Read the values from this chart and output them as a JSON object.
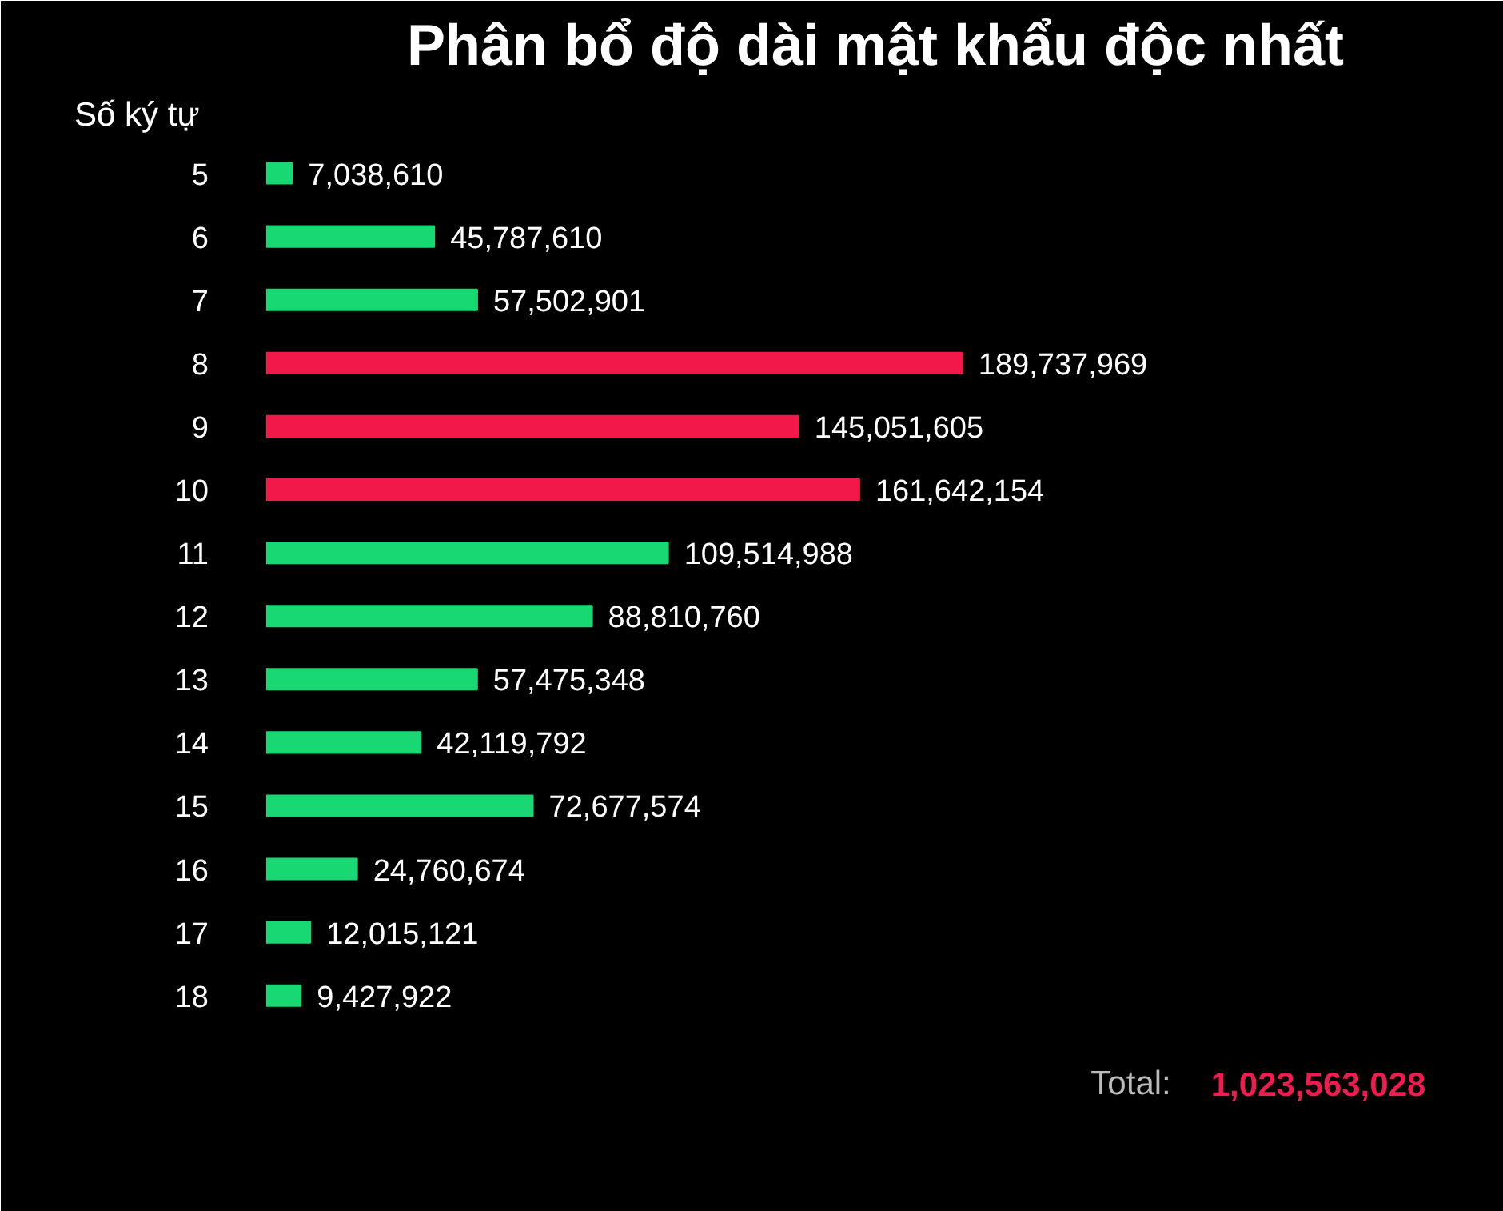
{
  "chart_data": {
    "type": "bar",
    "orientation": "horizontal",
    "title": "Phân bổ độ dài mật khẩu độc nhất",
    "ylabel": "Số ký tự",
    "categories": [
      "5",
      "6",
      "7",
      "8",
      "9",
      "10",
      "11",
      "12",
      "13",
      "14",
      "15",
      "16",
      "17",
      "18"
    ],
    "values": [
      7038610,
      45787610,
      57502901,
      189737969,
      145051605,
      161642154,
      109514988,
      88810760,
      57475348,
      42119792,
      72677574,
      24760674,
      12015121,
      9427922
    ],
    "colors": [
      "#17d873",
      "#17d873",
      "#17d873",
      "#f2184a",
      "#f2184a",
      "#f2184a",
      "#17d873",
      "#17d873",
      "#17d873",
      "#17d873",
      "#17d873",
      "#17d873",
      "#17d873",
      "#17d873"
    ],
    "value_labels": [
      "7,038,610",
      "45,787,610",
      "57,502,901",
      "189,737,969",
      "145,051,605",
      "161,642,154",
      "109,514,988",
      "88,810,760",
      "57,475,348",
      "42,119,792",
      "72,677,574",
      "24,760,674",
      "12,015,121",
      "9,427,922"
    ],
    "tick_labels": "y",
    "grid": false,
    "annotations": [
      "Total:",
      "1,023,563,028"
    ]
  }
}
